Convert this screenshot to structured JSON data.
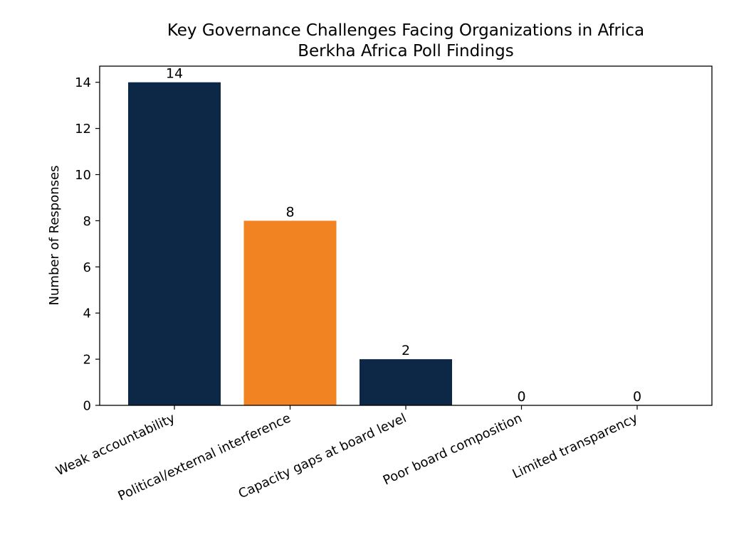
{
  "chart_data": {
    "type": "bar",
    "title": "Key Governance Challenges Facing Organizations in Africa",
    "subtitle": "Berkha Africa Poll Findings",
    "xlabel": "",
    "ylabel": "Number of Responses",
    "categories": [
      "Weak accountability",
      "Political/external interference",
      "Capacity gaps at board level",
      "Poor board composition",
      "Limited transparency"
    ],
    "values": [
      14,
      8,
      2,
      0,
      0
    ],
    "value_labels": [
      "14",
      "8",
      "2",
      "0",
      "0"
    ],
    "bar_colors": [
      "#0d2847",
      "#f28322",
      "#0d2847",
      "#0d2847",
      "#0d2847"
    ],
    "ylim": [
      0,
      14.7
    ],
    "yticks": [
      0,
      2,
      4,
      6,
      8,
      10,
      12,
      14
    ],
    "ytick_labels": [
      "0",
      "2",
      "4",
      "6",
      "8",
      "10",
      "12",
      "14"
    ],
    "grid": false,
    "legend": "none"
  }
}
